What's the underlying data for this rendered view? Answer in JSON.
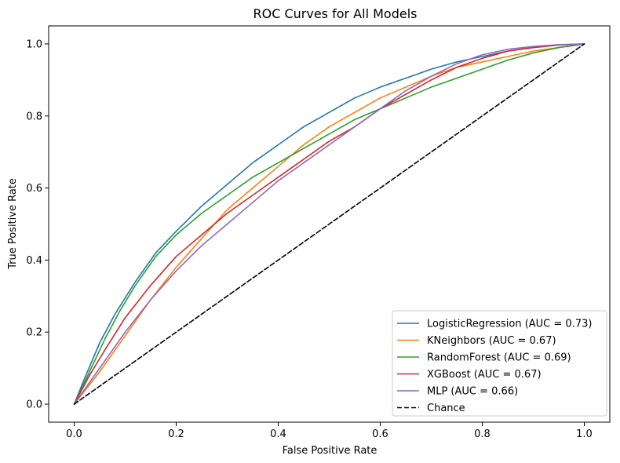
{
  "chart_data": {
    "type": "line",
    "title": "ROC Curves for All Models",
    "xlabel": "False Positive Rate",
    "ylabel": "True Positive Rate",
    "xlim": [
      -0.05,
      1.05
    ],
    "ylim": [
      -0.05,
      1.05
    ],
    "xticks": [
      "0.0",
      "0.2",
      "0.4",
      "0.6",
      "0.8",
      "1.0"
    ],
    "yticks": [
      "0.0",
      "0.2",
      "0.4",
      "0.6",
      "0.8",
      "1.0"
    ],
    "grid": false,
    "legend_position": "bottom-right",
    "series": [
      {
        "name": "LogisticRegression (AUC = 0.73)",
        "color": "#1f77b4",
        "style": "solid",
        "x": [
          0,
          0.02,
          0.05,
          0.08,
          0.12,
          0.16,
          0.2,
          0.25,
          0.3,
          0.35,
          0.4,
          0.45,
          0.5,
          0.55,
          0.6,
          0.65,
          0.7,
          0.75,
          0.8,
          0.85,
          0.9,
          0.95,
          1.0
        ],
        "y": [
          0,
          0.07,
          0.17,
          0.25,
          0.34,
          0.42,
          0.48,
          0.55,
          0.61,
          0.67,
          0.72,
          0.77,
          0.81,
          0.85,
          0.88,
          0.905,
          0.93,
          0.95,
          0.965,
          0.98,
          0.99,
          0.997,
          1.0
        ]
      },
      {
        "name": "KNeighbors (AUC = 0.67)",
        "color": "#ff7f0e",
        "style": "solid",
        "x": [
          0,
          0.05,
          0.1,
          0.15,
          0.2,
          0.25,
          0.3,
          0.35,
          0.4,
          0.45,
          0.5,
          0.55,
          0.6,
          0.65,
          0.7,
          0.75,
          0.8,
          0.85,
          0.9,
          0.95,
          1.0
        ],
        "y": [
          0,
          0.09,
          0.19,
          0.29,
          0.38,
          0.46,
          0.54,
          0.6,
          0.66,
          0.72,
          0.77,
          0.81,
          0.85,
          0.88,
          0.91,
          0.935,
          0.95,
          0.965,
          0.98,
          0.99,
          1.0
        ]
      },
      {
        "name": "RandomForest (AUC = 0.69)",
        "color": "#2ca02c",
        "style": "solid",
        "x": [
          0,
          0.03,
          0.06,
          0.09,
          0.12,
          0.16,
          0.2,
          0.25,
          0.3,
          0.35,
          0.4,
          0.45,
          0.5,
          0.55,
          0.6,
          0.65,
          0.7,
          0.75,
          0.8,
          0.85,
          0.9,
          0.95,
          1.0
        ],
        "y": [
          0,
          0.09,
          0.18,
          0.26,
          0.33,
          0.41,
          0.47,
          0.53,
          0.58,
          0.63,
          0.67,
          0.71,
          0.75,
          0.79,
          0.82,
          0.85,
          0.88,
          0.905,
          0.93,
          0.955,
          0.975,
          0.99,
          1.0
        ]
      },
      {
        "name": "XGBoost (AUC = 0.67)",
        "color": "#d62728",
        "style": "solid",
        "x": [
          0,
          0.03,
          0.06,
          0.1,
          0.15,
          0.2,
          0.25,
          0.3,
          0.35,
          0.4,
          0.45,
          0.5,
          0.55,
          0.6,
          0.65,
          0.7,
          0.75,
          0.8,
          0.85,
          0.9,
          0.95,
          1.0
        ],
        "y": [
          0,
          0.08,
          0.15,
          0.24,
          0.33,
          0.41,
          0.47,
          0.53,
          0.58,
          0.63,
          0.68,
          0.73,
          0.77,
          0.82,
          0.86,
          0.9,
          0.935,
          0.96,
          0.98,
          0.99,
          0.997,
          1.0
        ]
      },
      {
        "name": "MLP (AUC = 0.66)",
        "color": "#9467bd",
        "style": "solid",
        "x": [
          0,
          0.05,
          0.1,
          0.15,
          0.2,
          0.25,
          0.3,
          0.35,
          0.4,
          0.45,
          0.5,
          0.55,
          0.6,
          0.65,
          0.7,
          0.75,
          0.8,
          0.85,
          0.9,
          0.95,
          1.0
        ],
        "y": [
          0,
          0.1,
          0.2,
          0.29,
          0.37,
          0.44,
          0.5,
          0.56,
          0.62,
          0.67,
          0.72,
          0.77,
          0.82,
          0.87,
          0.91,
          0.945,
          0.97,
          0.985,
          0.993,
          0.998,
          1.0
        ]
      },
      {
        "name": "Chance",
        "color": "#000000",
        "style": "dashed",
        "x": [
          0,
          1
        ],
        "y": [
          0,
          1
        ]
      }
    ]
  }
}
